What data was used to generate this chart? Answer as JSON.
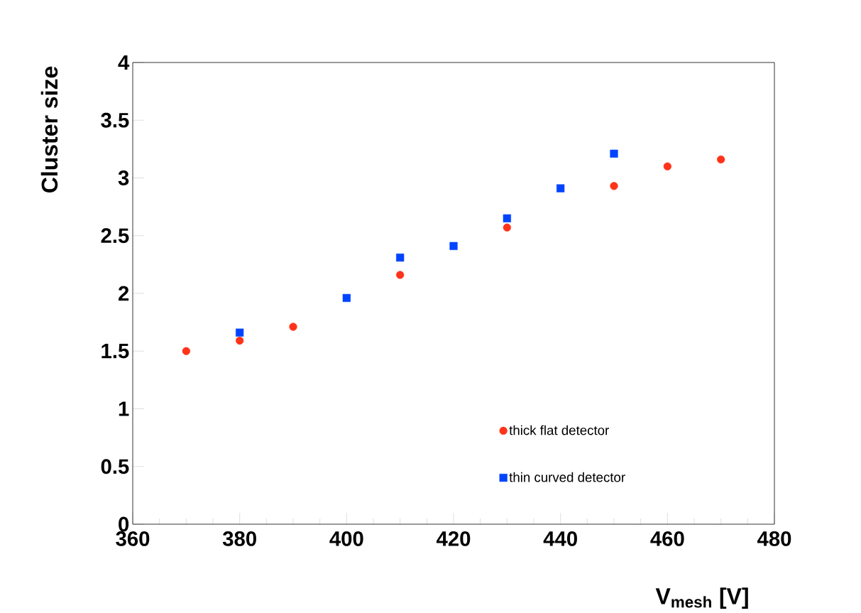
{
  "chart_data": {
    "type": "scatter",
    "xlabel": "V$_{mesh}$ [V]",
    "ylabel": "Cluster size",
    "xlim": [
      360,
      480
    ],
    "ylim": [
      0,
      4
    ],
    "xticks": [
      360,
      380,
      400,
      420,
      440,
      460,
      480
    ],
    "yticks": [
      0,
      0.5,
      1,
      1.5,
      2,
      2.5,
      3,
      3.5,
      4
    ],
    "legend": "bottom right",
    "series": [
      {
        "name": "thick flat detector",
        "color": "#ff3319",
        "marker": "circle",
        "x": [
          370,
          380,
          390,
          410,
          430,
          450,
          460,
          470
        ],
        "values": [
          1.5,
          1.59,
          1.71,
          2.16,
          2.57,
          2.93,
          3.1,
          3.16
        ]
      },
      {
        "name": "thin curved detector",
        "color": "#0044ff",
        "marker": "square",
        "x": [
          380,
          400,
          410,
          420,
          430,
          440,
          450
        ],
        "values": [
          1.66,
          1.96,
          2.31,
          2.41,
          2.65,
          2.91,
          3.21
        ]
      }
    ]
  }
}
